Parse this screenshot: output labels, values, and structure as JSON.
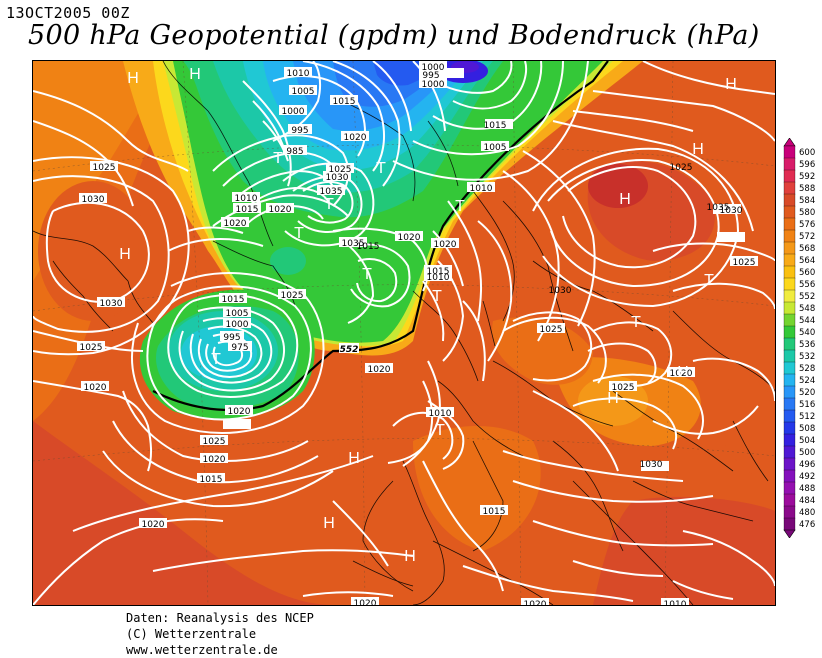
{
  "header": {
    "datetime": "13OCT2005 00Z",
    "title": "500 hPa Geopotential (gpdm) und Bodendruck (hPa)"
  },
  "credits": {
    "line1": "Daten: Reanalysis des NCEP",
    "line2": "(C) Wetterzentrale",
    "line3": "www.wetterzentrale.de"
  },
  "legend": {
    "labels": [
      "600",
      "596",
      "592",
      "588",
      "584",
      "580",
      "576",
      "572",
      "568",
      "564",
      "560",
      "556",
      "552",
      "548",
      "544",
      "540",
      "536",
      "532",
      "528",
      "524",
      "520",
      "516",
      "512",
      "508",
      "504",
      "500",
      "496",
      "492",
      "488",
      "484",
      "480",
      "476"
    ],
    "colors": [
      "#c8007a",
      "#d81c6a",
      "#e02c52",
      "#e0403c",
      "#d84a28",
      "#e05a1e",
      "#ea6e16",
      "#f08214",
      "#f49818",
      "#f8aa18",
      "#fac010",
      "#fcd81c",
      "#f0ec40",
      "#c8e834",
      "#74d430",
      "#34c838",
      "#22c878",
      "#1cc8a8",
      "#20c8d4",
      "#24b4f0",
      "#2896f8",
      "#2878f4",
      "#245af0",
      "#2438e8",
      "#3420e0",
      "#5018d4",
      "#6c14c8",
      "#8410bc",
      "#9410b0",
      "#9c0c9c",
      "#8a0a8a",
      "#780878"
    ]
  },
  "map": {
    "pressure_labels": [
      "1010",
      "1005",
      "1000",
      "995",
      "985",
      "1015",
      "1020",
      "1025",
      "1030",
      "1035",
      "1020",
      "1010",
      "1015",
      "1025",
      "1030",
      "1035",
      "1020",
      "1015",
      "1010",
      "1025",
      "1030",
      "1025",
      "1020",
      "1030",
      "1025",
      "1015",
      "1005",
      "1000",
      "995",
      "975",
      "1020",
      "1010",
      "1015",
      "1020",
      "1025",
      "1020",
      "1010",
      "1015",
      "1020",
      "1030",
      "1035",
      "1025",
      "1030",
      "1025",
      "1015",
      "1020",
      "1020",
      "1000",
      "995",
      "1000",
      "1005",
      "1025",
      "1020",
      "1015",
      "1020",
      "1020",
      "1010"
    ],
    "contour_552_label": "552",
    "highs": [
      "H",
      "H",
      "H",
      "H",
      "H",
      "H",
      "H",
      "H",
      "H",
      "H",
      "H"
    ],
    "lows": [
      "T",
      "T",
      "T",
      "T",
      "T",
      "T",
      "T",
      "T",
      "T",
      "T",
      "T"
    ]
  }
}
